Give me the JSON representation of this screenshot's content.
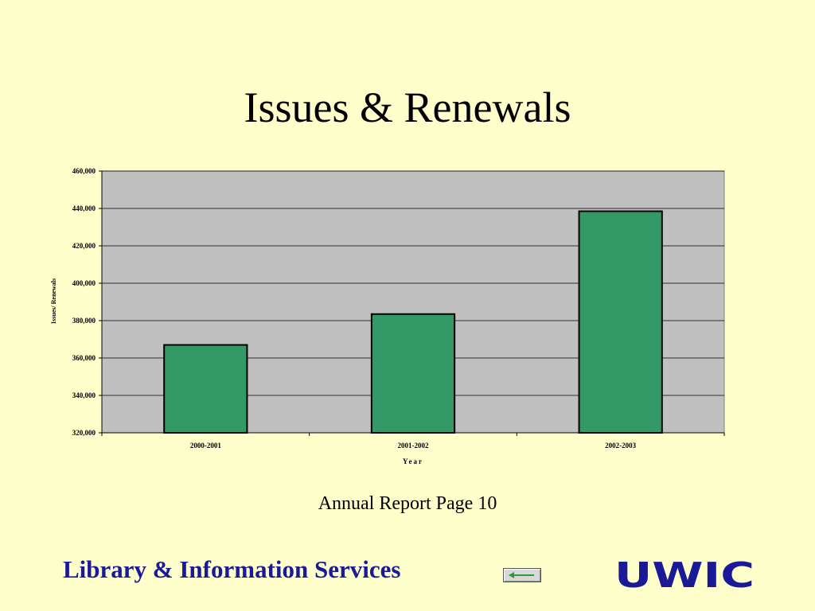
{
  "slide": {
    "title": "Issues & Renewals",
    "caption": "Annual Report Page 10",
    "footer": "Library & Information Services",
    "back_icon": "back-arrow-icon",
    "logo_text": "UWIC"
  },
  "colors": {
    "background": "#ffffcc",
    "plot_area": "#c0c0c0",
    "bar_fill": "#339966",
    "footer_text": "#1a1a99",
    "logo": "#1a1a99",
    "arrow": "#339933"
  },
  "chart_data": {
    "type": "bar",
    "categories": [
      "2000-2001",
      "2001-2002",
      "2002-2003"
    ],
    "values": [
      367000,
      383500,
      438500
    ],
    "xlabel": "Year",
    "ylabel": "Issues/ Renewals",
    "ylim": [
      320000,
      460000
    ],
    "yticks": [
      320000,
      340000,
      360000,
      380000,
      400000,
      420000,
      440000,
      460000
    ],
    "ytick_labels": [
      "320,000",
      "340,000",
      "360,000",
      "380,000",
      "400,000",
      "420,000",
      "440,000",
      "460,000"
    ],
    "grid": true,
    "legend": "none"
  }
}
